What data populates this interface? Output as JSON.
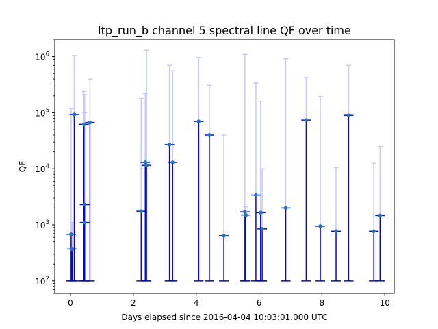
{
  "chart_data": {
    "type": "scatter",
    "title": "ltp_run_b channel 5 spectral line QF over time",
    "xlabel": "Days elapsed since 2016-04-04 10:03:01.000 UTC",
    "ylabel": "QF",
    "xlim": [
      -0.5,
      10.3
    ],
    "ylim": [
      60,
      2000000
    ],
    "yscale": "log",
    "x_ticks": [
      0,
      2,
      4,
      6,
      8,
      10
    ],
    "x_tick_labels": [
      "0",
      "2",
      "4",
      "6",
      "8",
      "10"
    ],
    "y_ticks": [
      100,
      1000,
      10000,
      100000,
      1000000
    ],
    "y_tick_labels": [
      "10^2",
      "10^3",
      "10^4",
      "10^5",
      "10^6"
    ],
    "grid": false,
    "colors": {
      "point": "#1f77b4",
      "inner_error": "#0000ff",
      "outer_error": "#c8c8ff"
    },
    "series": [
      {
        "points": [
          {
            "x": 0.02,
            "y": 680,
            "y_low": 100,
            "y_high": 120000
          },
          {
            "x": 0.05,
            "y": 370,
            "y_low": 100,
            "y_high": 1100
          },
          {
            "x": 0.12,
            "y": 93000,
            "y_low": 100,
            "y_high": 1050000
          },
          {
            "x": 0.43,
            "y": 62000,
            "y_low": 100,
            "y_high": 240000
          },
          {
            "x": 0.45,
            "y": 2300,
            "y_low": 100,
            "y_high": 100000
          },
          {
            "x": 0.45,
            "y": 1100,
            "y_low": 100,
            "y_high": 210000
          },
          {
            "x": 0.62,
            "y": 67000,
            "y_low": 100,
            "y_high": 400000
          },
          {
            "x": 2.25,
            "y": 1750,
            "y_low": 100,
            "y_high": 180000
          },
          {
            "x": 2.38,
            "y": 13000,
            "y_low": 100,
            "y_high": 220000
          },
          {
            "x": 2.42,
            "y": 11500,
            "y_low": 100,
            "y_high": 1300000
          },
          {
            "x": 3.15,
            "y": 27000,
            "y_low": 100,
            "y_high": 700000
          },
          {
            "x": 3.25,
            "y": 13000,
            "y_low": 100,
            "y_high": 560000
          },
          {
            "x": 4.08,
            "y": 70000,
            "y_low": 100,
            "y_high": 970000
          },
          {
            "x": 4.42,
            "y": 40000,
            "y_low": 100,
            "y_high": 310000
          },
          {
            "x": 4.88,
            "y": 640,
            "y_low": 100,
            "y_high": 40000
          },
          {
            "x": 5.55,
            "y": 1700,
            "y_low": 100,
            "y_high": 1100000
          },
          {
            "x": 5.58,
            "y": 1500,
            "y_low": 100,
            "y_high": 2100
          },
          {
            "x": 5.9,
            "y": 3400,
            "y_low": 100,
            "y_high": 340000
          },
          {
            "x": 6.05,
            "y": 1650,
            "y_low": 100,
            "y_high": 160000
          },
          {
            "x": 6.1,
            "y": 850,
            "y_low": 100,
            "y_high": 10000
          },
          {
            "x": 6.85,
            "y": 2000,
            "y_low": 100,
            "y_high": 920000
          },
          {
            "x": 7.5,
            "y": 74000,
            "y_low": 100,
            "y_high": 430000
          },
          {
            "x": 7.95,
            "y": 950,
            "y_low": 100,
            "y_high": 195000
          },
          {
            "x": 8.45,
            "y": 770,
            "y_low": 100,
            "y_high": 10500
          },
          {
            "x": 8.85,
            "y": 90000,
            "y_low": 100,
            "y_high": 700000
          },
          {
            "x": 9.65,
            "y": 770,
            "y_low": 100,
            "y_high": 12500
          },
          {
            "x": 9.85,
            "y": 1470,
            "y_low": 100,
            "y_high": 25000
          }
        ]
      }
    ]
  }
}
